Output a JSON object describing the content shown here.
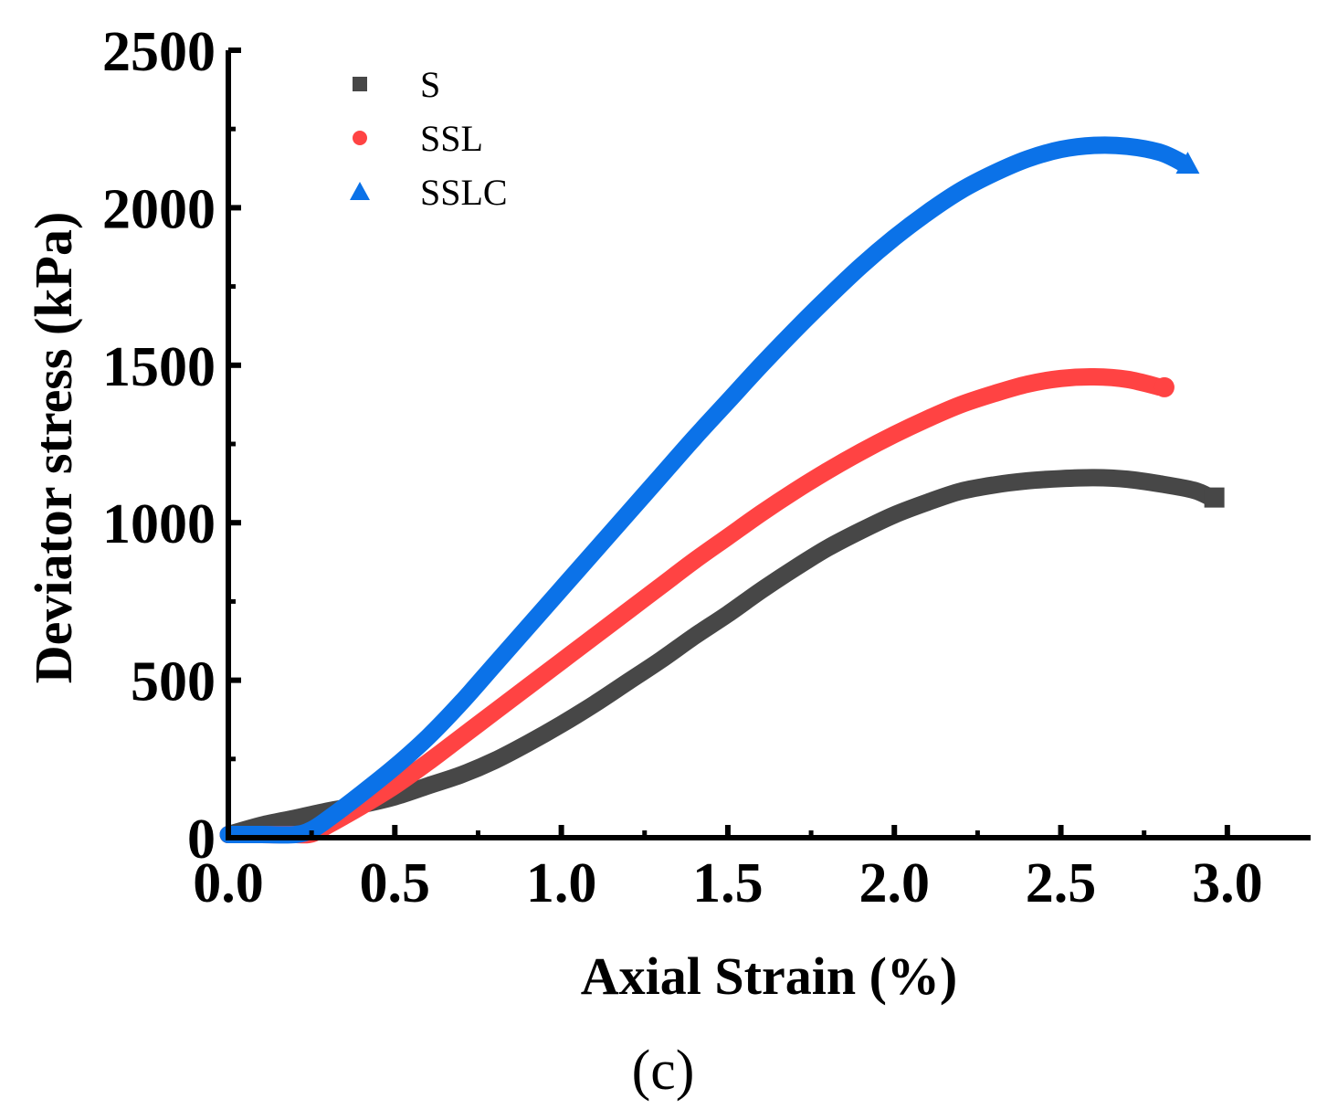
{
  "chart_data": {
    "type": "line",
    "xlabel": "Axial Strain (%)",
    "ylabel": "Deviator stress (kPa)",
    "caption": "(c)",
    "xlim": [
      0,
      3.25
    ],
    "ylim": [
      0,
      2500
    ],
    "xticks": [
      0.0,
      0.5,
      1.0,
      1.5,
      2.0,
      2.5,
      3.0
    ],
    "xtick_labels": [
      "0.0",
      "0.5",
      "1.0",
      "1.5",
      "2.0",
      "2.5",
      "3.0"
    ],
    "yticks": [
      0,
      500,
      1000,
      1500,
      2000,
      2500
    ],
    "ytick_labels": [
      "0",
      "500",
      "1000",
      "1500",
      "2000",
      "2500"
    ],
    "legend_position": "top-left",
    "series": [
      {
        "name": "S",
        "color": "#474747",
        "marker": "square",
        "x": [
          0.0,
          0.1,
          0.2,
          0.3,
          0.4,
          0.5,
          0.6,
          0.7,
          0.8,
          0.9,
          1.0,
          1.1,
          1.2,
          1.3,
          1.4,
          1.5,
          1.6,
          1.7,
          1.8,
          1.9,
          2.0,
          2.1,
          2.2,
          2.3,
          2.4,
          2.5,
          2.6,
          2.7,
          2.8,
          2.9,
          2.95
        ],
        "values": [
          10,
          40,
          62,
          85,
          105,
          130,
          165,
          200,
          245,
          300,
          360,
          425,
          495,
          565,
          640,
          710,
          785,
          855,
          920,
          975,
          1025,
          1065,
          1100,
          1120,
          1133,
          1140,
          1143,
          1138,
          1123,
          1103,
          1080
        ]
      },
      {
        "name": "SSL",
        "color": "#ff4343",
        "marker": "circle",
        "x": [
          0.0,
          0.1,
          0.2,
          0.25,
          0.3,
          0.4,
          0.5,
          0.6,
          0.7,
          0.8,
          0.9,
          1.0,
          1.1,
          1.2,
          1.3,
          1.4,
          1.5,
          1.6,
          1.7,
          1.8,
          1.9,
          2.0,
          2.1,
          2.2,
          2.3,
          2.4,
          2.5,
          2.6,
          2.7,
          2.8
        ],
        "values": [
          10,
          10,
          10,
          12,
          40,
          100,
          165,
          240,
          320,
          400,
          480,
          560,
          640,
          720,
          800,
          880,
          955,
          1030,
          1100,
          1165,
          1225,
          1280,
          1330,
          1375,
          1410,
          1440,
          1458,
          1463,
          1455,
          1430
        ]
      },
      {
        "name": "SSLC",
        "color": "#0b72e8",
        "marker": "triangle",
        "x": [
          0.0,
          0.1,
          0.2,
          0.25,
          0.3,
          0.4,
          0.5,
          0.6,
          0.7,
          0.8,
          0.9,
          1.0,
          1.1,
          1.2,
          1.3,
          1.4,
          1.5,
          1.6,
          1.7,
          1.8,
          1.9,
          2.0,
          2.1,
          2.2,
          2.3,
          2.4,
          2.5,
          2.6,
          2.7,
          2.8,
          2.87
        ],
        "values": [
          10,
          10,
          10,
          25,
          60,
          140,
          225,
          320,
          430,
          550,
          670,
          790,
          910,
          1030,
          1150,
          1270,
          1385,
          1500,
          1610,
          1715,
          1815,
          1905,
          1985,
          2055,
          2110,
          2155,
          2185,
          2198,
          2195,
          2175,
          2140
        ]
      }
    ]
  }
}
